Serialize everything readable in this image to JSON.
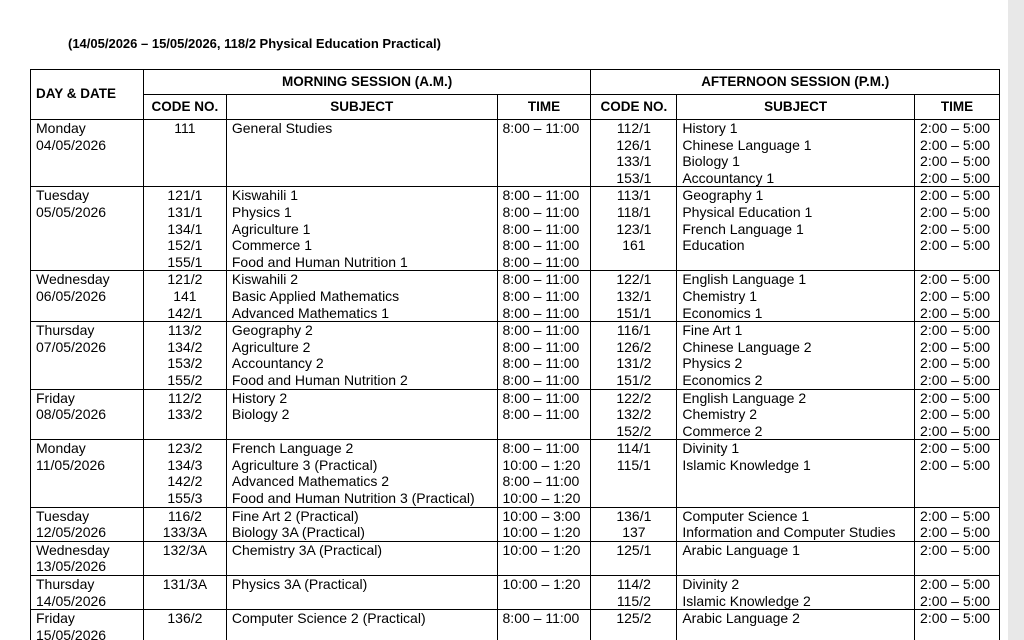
{
  "title": "(14/05/2026 – 15/05/2026, 118/2 Physical Education Practical)",
  "headers": {
    "day_date": "DAY & DATE",
    "morning": "MORNING SESSION (A.M.)",
    "afternoon": "AFTERNOON SESSION (P.M.)",
    "code": "CODE NO.",
    "subject": "SUBJECT",
    "time": "TIME"
  },
  "days": [
    {
      "day": "Monday",
      "date": "04/05/2026",
      "morning": [
        [
          "111",
          "General Studies",
          "8:00 – 11:00"
        ]
      ],
      "afternoon": [
        [
          "112/1",
          "History 1",
          "2:00 – 5:00"
        ],
        [
          "126/1",
          "Chinese Language 1",
          "2:00 – 5:00"
        ],
        [
          "133/1",
          "Biology 1",
          "2:00 – 5:00"
        ],
        [
          "153/1",
          "Accountancy 1",
          "2:00 – 5:00"
        ]
      ]
    },
    {
      "day": "Tuesday",
      "date": "05/05/2026",
      "morning": [
        [
          "121/1",
          "Kiswahili 1",
          "8:00 – 11:00"
        ],
        [
          "131/1",
          "Physics 1",
          "8:00 – 11:00"
        ],
        [
          "134/1",
          "Agriculture 1",
          "8:00 – 11:00"
        ],
        [
          "152/1",
          "Commerce 1",
          "8:00 – 11:00"
        ],
        [
          "155/1",
          "Food and Human Nutrition 1",
          "8:00 – 11:00"
        ]
      ],
      "afternoon": [
        [
          "113/1",
          "Geography 1",
          "2:00 – 5:00"
        ],
        [
          "118/1",
          "Physical Education 1",
          "2:00 – 5:00"
        ],
        [
          "123/1",
          "French Language 1",
          "2:00 – 5:00"
        ],
        [
          "161",
          "Education",
          "2:00 – 5:00"
        ]
      ]
    },
    {
      "day": "Wednesday",
      "date": "06/05/2026",
      "morning": [
        [
          "121/2",
          "Kiswahili 2",
          "8:00 – 11:00"
        ],
        [
          "141",
          "Basic Applied Mathematics",
          "8:00 – 11:00"
        ],
        [
          "142/1",
          "Advanced Mathematics 1",
          "8:00 – 11:00"
        ]
      ],
      "afternoon": [
        [
          "122/1",
          "English Language 1",
          "2:00 – 5:00"
        ],
        [
          "132/1",
          "Chemistry 1",
          "2:00 – 5:00"
        ],
        [
          "151/1",
          "Economics 1",
          "2:00 – 5:00"
        ]
      ]
    },
    {
      "day": "Thursday",
      "date": "07/05/2026",
      "morning": [
        [
          "113/2",
          "Geography 2",
          "8:00 – 11:00"
        ],
        [
          "134/2",
          "Agriculture 2",
          "8:00 – 11:00"
        ],
        [
          "153/2",
          "Accountancy 2",
          "8:00 – 11:00"
        ],
        [
          "155/2",
          "Food and Human Nutrition 2",
          "8:00 – 11:00"
        ]
      ],
      "afternoon": [
        [
          "116/1",
          "Fine Art 1",
          "2:00 – 5:00"
        ],
        [
          "126/2",
          "Chinese Language 2",
          "2:00 – 5:00"
        ],
        [
          "131/2",
          "Physics 2",
          "2:00 – 5:00"
        ],
        [
          "151/2",
          "Economics 2",
          "2:00 – 5:00"
        ]
      ]
    },
    {
      "day": "Friday",
      "date": "08/05/2026",
      "morning": [
        [
          "112/2",
          "History 2",
          "8:00 – 11:00"
        ],
        [
          "133/2",
          "Biology  2",
          "8:00 – 11:00"
        ]
      ],
      "afternoon": [
        [
          "122/2",
          "English Language 2",
          "2:00 – 5:00"
        ],
        [
          "132/2",
          "Chemistry 2",
          "2:00 – 5:00"
        ],
        [
          "152/2",
          "Commerce 2",
          "2:00 – 5:00"
        ]
      ]
    },
    {
      "day": "Monday",
      "date": "11/05/2026",
      "morning": [
        [
          "123/2",
          "French Language 2",
          "8:00 – 11:00"
        ],
        [
          "134/3",
          "Agriculture 3 (Practical)",
          "10:00 – 1:20"
        ],
        [
          "142/2",
          "Advanced Mathematics 2",
          "8:00 – 11:00"
        ],
        [
          "155/3",
          "Food and Human Nutrition 3 (Practical)",
          "10:00 – 1:20"
        ]
      ],
      "afternoon": [
        [
          "114/1",
          "Divinity 1",
          "2:00 – 5:00"
        ],
        [
          "115/1",
          "Islamic Knowledge 1",
          "2:00 – 5:00"
        ]
      ]
    },
    {
      "day": "Tuesday",
      "date": "12/05/2026",
      "morning": [
        [
          "116/2",
          "Fine Art 2 (Practical)",
          "10:00 – 3:00"
        ],
        [
          "133/3A",
          "Biology 3A (Practical)",
          "10:00 – 1:20"
        ]
      ],
      "afternoon": [
        [
          "136/1",
          "Computer Science 1",
          "2:00 – 5:00"
        ],
        [
          "137",
          "Information and Computer Studies",
          "2:00 – 5:00"
        ]
      ]
    },
    {
      "day": "Wednesday",
      "date": "13/05/2026",
      "morning": [
        [
          "132/3A",
          "Chemistry 3A (Practical)",
          "10:00 – 1:20"
        ]
      ],
      "afternoon": [
        [
          "125/1",
          "Arabic Language 1",
          "2:00 – 5:00"
        ]
      ]
    },
    {
      "day": "Thursday",
      "date": "14/05/2026",
      "morning": [
        [
          "131/3A",
          "Physics 3A (Practical)",
          "10:00 – 1:20"
        ]
      ],
      "afternoon": [
        [
          "114/2",
          "Divinity 2",
          "2:00 – 5:00"
        ],
        [
          "115/2",
          "Islamic Knowledge 2",
          "2:00 – 5:00"
        ]
      ]
    },
    {
      "day": "Friday",
      "date": "15/05/2026",
      "morning": [
        [
          "136/2",
          "Computer Science 2 (Practical)",
          "8:00 – 11:00"
        ]
      ],
      "afternoon": [
        [
          "125/2",
          "Arabic Language 2",
          "2:00 – 5:00"
        ]
      ]
    }
  ]
}
